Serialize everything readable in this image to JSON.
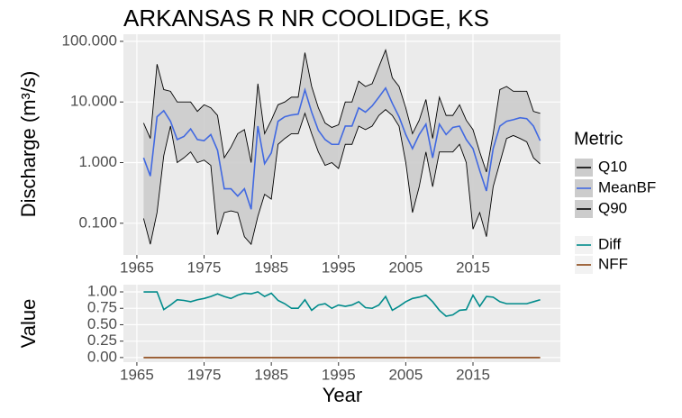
{
  "chart_data": [
    {
      "type": "line",
      "title": "ARKANSAS R NR COOLIDGE, KS",
      "y_label": "Discharge (m³/s)",
      "log_y": true,
      "grid": true,
      "legend": "right",
      "legend_title": "Metric",
      "ribbon": {
        "lower": "Q10",
        "upper": "Q90",
        "color": "#cccccc"
      },
      "x": [
        1966,
        1967,
        1968,
        1969,
        1970,
        1971,
        1972,
        1973,
        1974,
        1975,
        1976,
        1977,
        1978,
        1979,
        1980,
        1981,
        1982,
        1983,
        1984,
        1985,
        1986,
        1987,
        1988,
        1989,
        1990,
        1991,
        1992,
        1993,
        1994,
        1995,
        1996,
        1997,
        1998,
        1999,
        2000,
        2001,
        2002,
        2003,
        2004,
        2005,
        2006,
        2007,
        2008,
        2009,
        2010,
        2011,
        2012,
        2013,
        2014,
        2015,
        2016,
        2017,
        2018,
        2019,
        2020,
        2021,
        2022,
        2023,
        2024,
        2025
      ],
      "xlim": [
        1963,
        2028
      ],
      "xticks": [
        1965,
        1975,
        1985,
        1995,
        2005,
        2015
      ],
      "ylim": [
        0.03,
        131
      ],
      "yticks": [
        {
          "value": 0.1,
          "label": "0.100"
        },
        {
          "value": 1,
          "label": "1.000"
        },
        {
          "value": 10,
          "label": "10.000"
        },
        {
          "value": 100,
          "label": "100.000"
        }
      ],
      "series": [
        {
          "name": "Q10",
          "color": "#000000",
          "values": [
            0.12,
            0.045,
            0.15,
            1.3,
            4,
            1.0,
            1.2,
            1.5,
            1,
            1.1,
            0.9,
            0.065,
            0.15,
            0.16,
            0.15,
            0.06,
            0.045,
            0.13,
            0.3,
            0.25,
            2,
            2.5,
            3,
            3,
            6.5,
            3,
            1.5,
            0.9,
            1,
            0.8,
            2,
            2,
            4,
            3.5,
            4,
            6,
            7.5,
            6,
            4,
            1,
            0.15,
            0.4,
            1.5,
            0.4,
            1.5,
            1.5,
            1.5,
            2,
            1,
            0.08,
            0.15,
            0.06,
            0.4,
            1,
            2.5,
            2.8,
            2.5,
            2.2,
            1.2,
            0.95
          ]
        },
        {
          "name": "MeanBF",
          "color": "#4169e1",
          "values": [
            1.2,
            0.6,
            5.7,
            7.2,
            4.8,
            2.4,
            2.7,
            3.6,
            2.4,
            2.3,
            2.9,
            1.6,
            0.37,
            0.37,
            0.28,
            0.37,
            0.17,
            4.0,
            0.96,
            1.45,
            4.8,
            5.7,
            6.1,
            6.3,
            15.8,
            6.8,
            3.4,
            2.4,
            2.0,
            2.0,
            4.0,
            4.0,
            8.0,
            6.8,
            8.6,
            12,
            17,
            9.5,
            5.7,
            2.9,
            1.7,
            2.9,
            4.3,
            1.2,
            4.3,
            2.9,
            3.8,
            4.0,
            2.4,
            1.7,
            0.74,
            0.34,
            1.7,
            4.0,
            4.8,
            5.1,
            5.5,
            5.3,
            4.0,
            2.3
          ]
        },
        {
          "name": "Q90",
          "color": "#000000",
          "values": [
            4.5,
            2.5,
            42,
            16,
            15,
            10,
            10,
            10,
            7,
            9,
            8,
            6,
            1.2,
            1.8,
            3,
            3.5,
            1,
            20,
            3,
            5,
            9,
            10,
            12,
            12,
            65,
            18,
            8,
            4.5,
            3.8,
            4.2,
            10,
            10,
            22,
            18,
            20,
            38,
            72,
            25,
            18,
            8,
            3,
            5,
            11,
            2.5,
            12,
            6,
            6,
            9,
            5,
            3.5,
            1.5,
            0.7,
            3,
            16,
            18,
            15,
            15,
            15,
            7,
            6.5
          ]
        }
      ]
    },
    {
      "type": "line",
      "y_label": "Value",
      "x_label": "Year",
      "grid": true,
      "legend": "right",
      "x": [
        1966,
        1967,
        1968,
        1969,
        1970,
        1971,
        1972,
        1973,
        1974,
        1975,
        1976,
        1977,
        1978,
        1979,
        1980,
        1981,
        1982,
        1983,
        1984,
        1985,
        1986,
        1987,
        1988,
        1989,
        1990,
        1991,
        1992,
        1993,
        1994,
        1995,
        1996,
        1997,
        1998,
        1999,
        2000,
        2001,
        2002,
        2003,
        2004,
        2005,
        2006,
        2007,
        2008,
        2009,
        2010,
        2011,
        2012,
        2013,
        2014,
        2015,
        2016,
        2017,
        2018,
        2019,
        2020,
        2021,
        2022,
        2023,
        2024,
        2025
      ],
      "xlim": [
        1963,
        2028
      ],
      "xticks": [
        1965,
        1975,
        1985,
        1995,
        2005,
        2015
      ],
      "ylim": [
        -0.07,
        1.11
      ],
      "yticks": [
        {
          "value": 0,
          "label": "0.00"
        },
        {
          "value": 0.25,
          "label": "0.25"
        },
        {
          "value": 0.5,
          "label": "0.50"
        },
        {
          "value": 0.75,
          "label": "0.75"
        },
        {
          "value": 1,
          "label": "1.00"
        }
      ],
      "series": [
        {
          "name": "Diff",
          "color": "#008b8b",
          "values": [
            1,
            1,
            1,
            0.73,
            0.8,
            0.88,
            0.87,
            0.85,
            0.88,
            0.9,
            0.93,
            0.97,
            0.93,
            0.9,
            0.95,
            0.98,
            0.97,
            1.0,
            0.93,
            0.98,
            0.87,
            0.82,
            0.75,
            0.75,
            0.88,
            0.72,
            0.8,
            0.82,
            0.75,
            0.8,
            0.78,
            0.8,
            0.85,
            0.76,
            0.75,
            0.8,
            0.93,
            0.72,
            0.78,
            0.85,
            0.9,
            0.92,
            0.95,
            0.85,
            0.72,
            0.63,
            0.65,
            0.72,
            0.73,
            0.95,
            0.78,
            0.93,
            0.92,
            0.85,
            0.82,
            0.82,
            0.82,
            0.82,
            0.85,
            0.88
          ]
        },
        {
          "name": "NFF",
          "color": "#8b4513",
          "values": [
            0,
            0,
            0,
            0,
            0,
            0,
            0,
            0,
            0,
            0,
            0,
            0,
            0,
            0,
            0,
            0,
            0,
            0,
            0,
            0,
            0,
            0,
            0,
            0,
            0,
            0,
            0,
            0,
            0,
            0,
            0,
            0,
            0,
            0,
            0,
            0,
            0,
            0,
            0,
            0,
            0,
            0,
            0,
            0,
            0,
            0,
            0,
            0,
            0,
            0,
            0,
            0,
            0,
            0,
            0,
            0,
            0,
            0,
            0,
            0
          ]
        }
      ]
    }
  ]
}
